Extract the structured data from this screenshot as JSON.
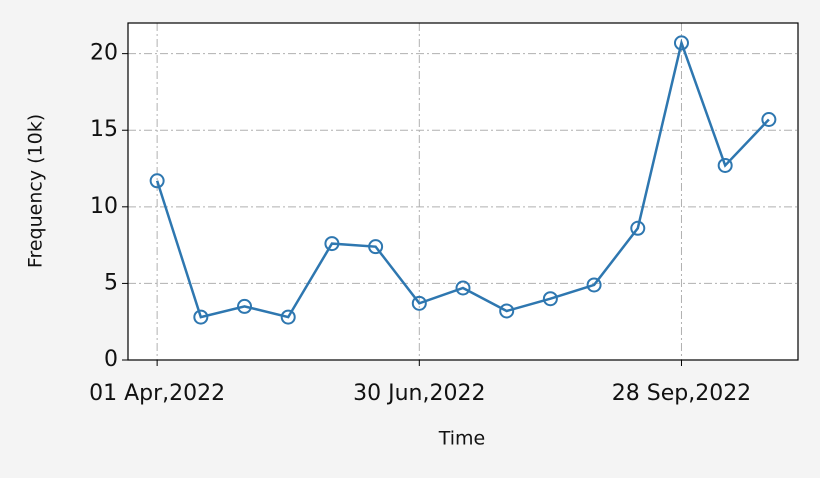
{
  "chart_data": {
    "type": "line",
    "x": [
      "2022-04-01",
      "2022-04-16",
      "2022-05-01",
      "2022-05-16",
      "2022-05-31",
      "2022-06-15",
      "2022-06-30",
      "2022-07-15",
      "2022-07-30",
      "2022-08-14",
      "2022-08-29",
      "2022-09-13",
      "2022-09-28",
      "2022-10-13",
      "2022-10-28"
    ],
    "values": [
      11.7,
      2.8,
      3.5,
      2.8,
      7.6,
      7.4,
      3.7,
      4.7,
      3.2,
      4.0,
      4.9,
      8.6,
      20.7,
      12.7,
      15.7
    ],
    "color": "#2e77b0",
    "xlabel": "Time",
    "ylabel": "Frequency (10k)",
    "xlim": [
      "2022-03-22",
      "2022-11-07"
    ],
    "xticks": [
      {
        "value": "2022-04-01",
        "label": "01 Apr,2022"
      },
      {
        "value": "2022-06-30",
        "label": "30 Jun,2022"
      },
      {
        "value": "2022-09-28",
        "label": "28 Sep,2022"
      }
    ],
    "ylim": [
      0,
      22
    ],
    "yticks": [
      0,
      5,
      10,
      15,
      20
    ],
    "grid": true
  }
}
